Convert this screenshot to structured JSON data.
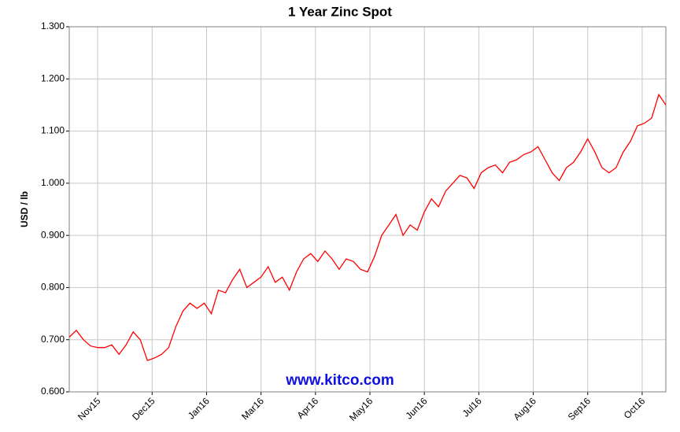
{
  "chart_data": {
    "type": "line",
    "title": "1 Year Zinc Spot",
    "y_label": "USD / lb",
    "watermark": "www.kitco.com",
    "x": [
      0,
      3,
      6,
      9,
      12,
      15,
      18,
      21,
      24,
      27,
      30,
      33,
      36,
      39,
      42,
      45,
      48,
      51,
      54,
      57,
      60,
      63,
      66,
      69,
      72,
      75,
      78,
      81,
      84,
      87,
      90,
      93,
      96,
      99,
      102,
      105,
      108,
      111,
      114,
      117,
      120,
      123,
      126,
      129,
      132,
      135,
      138,
      141,
      144,
      147,
      150,
      153,
      156,
      159,
      162,
      165,
      168,
      171,
      174,
      177,
      180,
      183,
      186,
      189,
      192,
      195,
      198,
      201,
      204,
      207,
      210,
      213,
      216,
      219,
      222,
      225,
      228,
      231,
      234,
      237,
      240,
      243,
      246,
      249,
      252
    ],
    "series": [
      {
        "name": "Zinc",
        "color": "#ff0000",
        "values": [
          0.705,
          0.718,
          0.7,
          0.688,
          0.685,
          0.685,
          0.69,
          0.672,
          0.69,
          0.715,
          0.7,
          0.66,
          0.665,
          0.672,
          0.685,
          0.725,
          0.755,
          0.77,
          0.76,
          0.77,
          0.75,
          0.795,
          0.79,
          0.815,
          0.835,
          0.8,
          0.81,
          0.82,
          0.84,
          0.81,
          0.82,
          0.795,
          0.83,
          0.855,
          0.865,
          0.85,
          0.87,
          0.855,
          0.835,
          0.855,
          0.85,
          0.835,
          0.83,
          0.86,
          0.9,
          0.92,
          0.94,
          0.9,
          0.92,
          0.91,
          0.945,
          0.97,
          0.955,
          0.985,
          1.0,
          1.015,
          1.01,
          0.99,
          1.02,
          1.03,
          1.035,
          1.02,
          1.04,
          1.045,
          1.055,
          1.06,
          1.07,
          1.045,
          1.02,
          1.005,
          1.03,
          1.04,
          1.06,
          1.085,
          1.06,
          1.03,
          1.02,
          1.03,
          1.06,
          1.08,
          1.11,
          1.115,
          1.125,
          1.17,
          1.15
        ]
      }
    ],
    "xlim": [
      0,
      252
    ],
    "xticks": [
      {
        "value": 12,
        "label": "Nov15"
      },
      {
        "value": 35,
        "label": "Dec15"
      },
      {
        "value": 58,
        "label": "Jan16"
      },
      {
        "value": 81,
        "label": "Mar16"
      },
      {
        "value": 104,
        "label": "Apr16"
      },
      {
        "value": 127,
        "label": "May16"
      },
      {
        "value": 150,
        "label": "Jun16"
      },
      {
        "value": 173,
        "label": "Jul16"
      },
      {
        "value": 196,
        "label": "Aug16"
      },
      {
        "value": 219,
        "label": "Sep16"
      },
      {
        "value": 242,
        "label": "Oct16"
      }
    ],
    "ylim": [
      0.6,
      1.3
    ],
    "yticks": [
      {
        "value": 0.6,
        "label": "0.600"
      },
      {
        "value": 0.7,
        "label": "0.700"
      },
      {
        "value": 0.8,
        "label": "0.800"
      },
      {
        "value": 0.9,
        "label": "0.900"
      },
      {
        "value": 1.0,
        "label": "1.000"
      },
      {
        "value": 1.1,
        "label": "1.100"
      },
      {
        "value": 1.2,
        "label": "1.200"
      },
      {
        "value": 1.3,
        "label": "1.300"
      }
    ],
    "grid": true
  }
}
